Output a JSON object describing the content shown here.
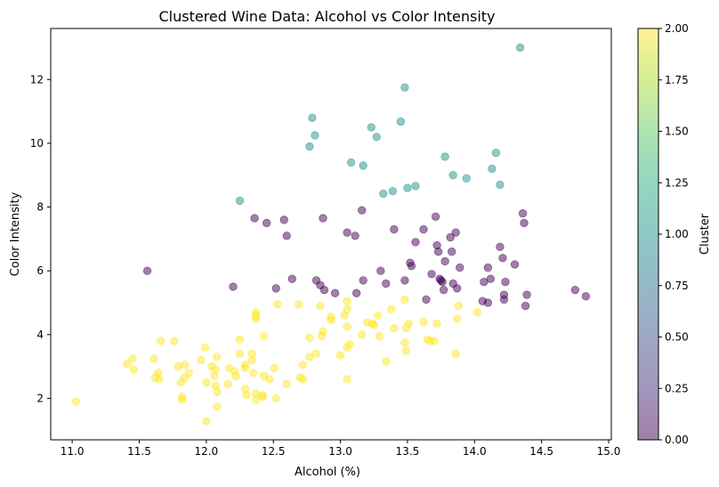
{
  "chart_data": {
    "type": "scatter",
    "title": "Clustered Wine Data: Alcohol vs Color Intensity",
    "xlabel": "Alcohol (%)",
    "ylabel": "Color Intensity",
    "xlim": [
      10.84,
      15.02
    ],
    "ylim": [
      0.7,
      13.6
    ],
    "xticks": [
      "11.0",
      "11.5",
      "12.0",
      "12.5",
      "13.0",
      "13.5",
      "14.0",
      "14.5",
      "15.0"
    ],
    "yticks": [
      "2",
      "4",
      "6",
      "8",
      "10",
      "12"
    ],
    "grid": false,
    "alpha": 0.5,
    "colorbar": {
      "label": "Cluster",
      "range": [
        0,
        2
      ],
      "ticks": [
        "0.00",
        "0.25",
        "0.50",
        "0.75",
        "1.00",
        "1.25",
        "1.50",
        "1.75",
        "2.00"
      ],
      "colormap": "viridis"
    },
    "series": [
      {
        "name": "Cluster 0",
        "color": "#440154",
        "points": [
          [
            11.56,
            6.0
          ],
          [
            12.2,
            5.5
          ],
          [
            12.36,
            7.65
          ],
          [
            12.45,
            7.5
          ],
          [
            12.58,
            7.6
          ],
          [
            12.6,
            7.1
          ],
          [
            12.52,
            5.45
          ],
          [
            12.64,
            5.75
          ],
          [
            12.82,
            5.7
          ],
          [
            12.85,
            5.55
          ],
          [
            12.87,
            7.65
          ],
          [
            12.88,
            5.4
          ],
          [
            12.96,
            5.3
          ],
          [
            13.05,
            7.2
          ],
          [
            13.11,
            7.1
          ],
          [
            13.16,
            7.9
          ],
          [
            13.17,
            5.7
          ],
          [
            13.12,
            5.3
          ],
          [
            13.3,
            6.0
          ],
          [
            13.34,
            5.6
          ],
          [
            13.4,
            7.3
          ],
          [
            13.48,
            5.7
          ],
          [
            13.52,
            6.25
          ],
          [
            13.53,
            6.15
          ],
          [
            13.56,
            6.9
          ],
          [
            13.62,
            7.3
          ],
          [
            13.64,
            5.1
          ],
          [
            13.68,
            5.9
          ],
          [
            13.71,
            7.7
          ],
          [
            13.72,
            6.8
          ],
          [
            13.73,
            6.6
          ],
          [
            13.74,
            5.75
          ],
          [
            13.75,
            5.7
          ],
          [
            13.76,
            5.65
          ],
          [
            13.77,
            5.4
          ],
          [
            13.78,
            6.3
          ],
          [
            13.82,
            7.05
          ],
          [
            13.83,
            6.6
          ],
          [
            13.84,
            5.6
          ],
          [
            13.86,
            7.2
          ],
          [
            13.87,
            5.45
          ],
          [
            13.89,
            6.1
          ],
          [
            14.06,
            5.05
          ],
          [
            14.07,
            5.65
          ],
          [
            14.1,
            6.1
          ],
          [
            14.1,
            5.0
          ],
          [
            14.12,
            5.75
          ],
          [
            14.19,
            6.75
          ],
          [
            14.21,
            6.4
          ],
          [
            14.22,
            5.25
          ],
          [
            14.22,
            5.1
          ],
          [
            14.23,
            5.65
          ],
          [
            14.3,
            6.2
          ],
          [
            14.36,
            7.8
          ],
          [
            14.37,
            7.5
          ],
          [
            14.38,
            4.9
          ],
          [
            14.39,
            5.25
          ],
          [
            14.75,
            5.4
          ],
          [
            14.83,
            5.2
          ]
        ]
      },
      {
        "name": "Cluster 1",
        "color": "#21918c",
        "points": [
          [
            12.25,
            8.2
          ],
          [
            12.77,
            9.9
          ],
          [
            12.79,
            10.8
          ],
          [
            12.81,
            10.25
          ],
          [
            13.08,
            9.4
          ],
          [
            13.17,
            9.3
          ],
          [
            13.23,
            10.5
          ],
          [
            13.27,
            10.2
          ],
          [
            13.32,
            8.42
          ],
          [
            13.39,
            8.5
          ],
          [
            13.45,
            10.68
          ],
          [
            13.48,
            11.75
          ],
          [
            13.5,
            8.6
          ],
          [
            13.56,
            8.66
          ],
          [
            13.78,
            9.58
          ],
          [
            13.84,
            9.0
          ],
          [
            13.94,
            8.9
          ],
          [
            14.13,
            9.2
          ],
          [
            14.16,
            9.7
          ],
          [
            14.19,
            8.7
          ],
          [
            14.34,
            13.0
          ]
        ]
      },
      {
        "name": "Cluster 2",
        "color": "#fde725",
        "points": [
          [
            11.03,
            1.9
          ],
          [
            11.41,
            3.08
          ],
          [
            11.45,
            3.25
          ],
          [
            11.46,
            2.9
          ],
          [
            11.61,
            3.25
          ],
          [
            11.62,
            2.65
          ],
          [
            11.64,
            2.8
          ],
          [
            11.65,
            2.6
          ],
          [
            11.66,
            3.8
          ],
          [
            11.76,
            3.8
          ],
          [
            11.79,
            3.0
          ],
          [
            11.81,
            2.5
          ],
          [
            11.82,
            2.05
          ],
          [
            11.82,
            1.95
          ],
          [
            11.84,
            3.05
          ],
          [
            11.84,
            2.65
          ],
          [
            11.87,
            2.8
          ],
          [
            11.96,
            3.2
          ],
          [
            11.99,
            3.6
          ],
          [
            12.0,
            2.5
          ],
          [
            12.0,
            1.28
          ],
          [
            12.04,
            3.0
          ],
          [
            12.06,
            2.7
          ],
          [
            12.07,
            2.9
          ],
          [
            12.07,
            2.4
          ],
          [
            12.08,
            2.2
          ],
          [
            12.08,
            3.3
          ],
          [
            12.08,
            1.74
          ],
          [
            12.16,
            2.45
          ],
          [
            12.17,
            2.95
          ],
          [
            12.21,
            2.85
          ],
          [
            12.22,
            2.7
          ],
          [
            12.25,
            3.4
          ],
          [
            12.25,
            3.85
          ],
          [
            12.29,
            2.95
          ],
          [
            12.29,
            3.05
          ],
          [
            12.29,
            2.3
          ],
          [
            12.3,
            2.1
          ],
          [
            12.34,
            3.4
          ],
          [
            12.34,
            3.2
          ],
          [
            12.35,
            2.8
          ],
          [
            12.37,
            4.7
          ],
          [
            12.37,
            4.6
          ],
          [
            12.37,
            4.5
          ],
          [
            12.37,
            2.15
          ],
          [
            12.37,
            1.95
          ],
          [
            12.42,
            2.1
          ],
          [
            12.42,
            2.05
          ],
          [
            12.43,
            3.95
          ],
          [
            12.43,
            2.7
          ],
          [
            12.47,
            2.6
          ],
          [
            12.51,
            2.95
          ],
          [
            12.52,
            2.0
          ],
          [
            12.53,
            4.95
          ],
          [
            12.6,
            2.45
          ],
          [
            12.69,
            4.95
          ],
          [
            12.7,
            2.65
          ],
          [
            12.72,
            3.05
          ],
          [
            12.72,
            2.6
          ],
          [
            12.77,
            3.9
          ],
          [
            12.77,
            3.3
          ],
          [
            12.82,
            3.4
          ],
          [
            12.85,
            4.9
          ],
          [
            12.86,
            3.95
          ],
          [
            12.87,
            4.1
          ],
          [
            12.93,
            4.55
          ],
          [
            12.93,
            4.45
          ],
          [
            13.0,
            3.35
          ],
          [
            13.03,
            4.6
          ],
          [
            13.05,
            5.05
          ],
          [
            13.05,
            4.8
          ],
          [
            13.05,
            4.25
          ],
          [
            13.05,
            3.6
          ],
          [
            13.05,
            2.6
          ],
          [
            13.07,
            3.7
          ],
          [
            13.16,
            4.0
          ],
          [
            13.2,
            4.38
          ],
          [
            13.24,
            4.35
          ],
          [
            13.25,
            4.3
          ],
          [
            13.28,
            4.6
          ],
          [
            13.29,
            3.95
          ],
          [
            13.34,
            3.15
          ],
          [
            13.38,
            4.8
          ],
          [
            13.4,
            4.2
          ],
          [
            13.48,
            5.1
          ],
          [
            13.48,
            3.75
          ],
          [
            13.49,
            4.2
          ],
          [
            13.49,
            3.5
          ],
          [
            13.51,
            4.35
          ],
          [
            13.62,
            4.4
          ],
          [
            13.65,
            3.85
          ],
          [
            13.67,
            3.8
          ],
          [
            13.7,
            3.8
          ],
          [
            13.72,
            4.35
          ],
          [
            13.86,
            3.4
          ],
          [
            13.87,
            4.5
          ],
          [
            13.88,
            4.9
          ],
          [
            14.02,
            4.7
          ]
        ]
      }
    ]
  }
}
